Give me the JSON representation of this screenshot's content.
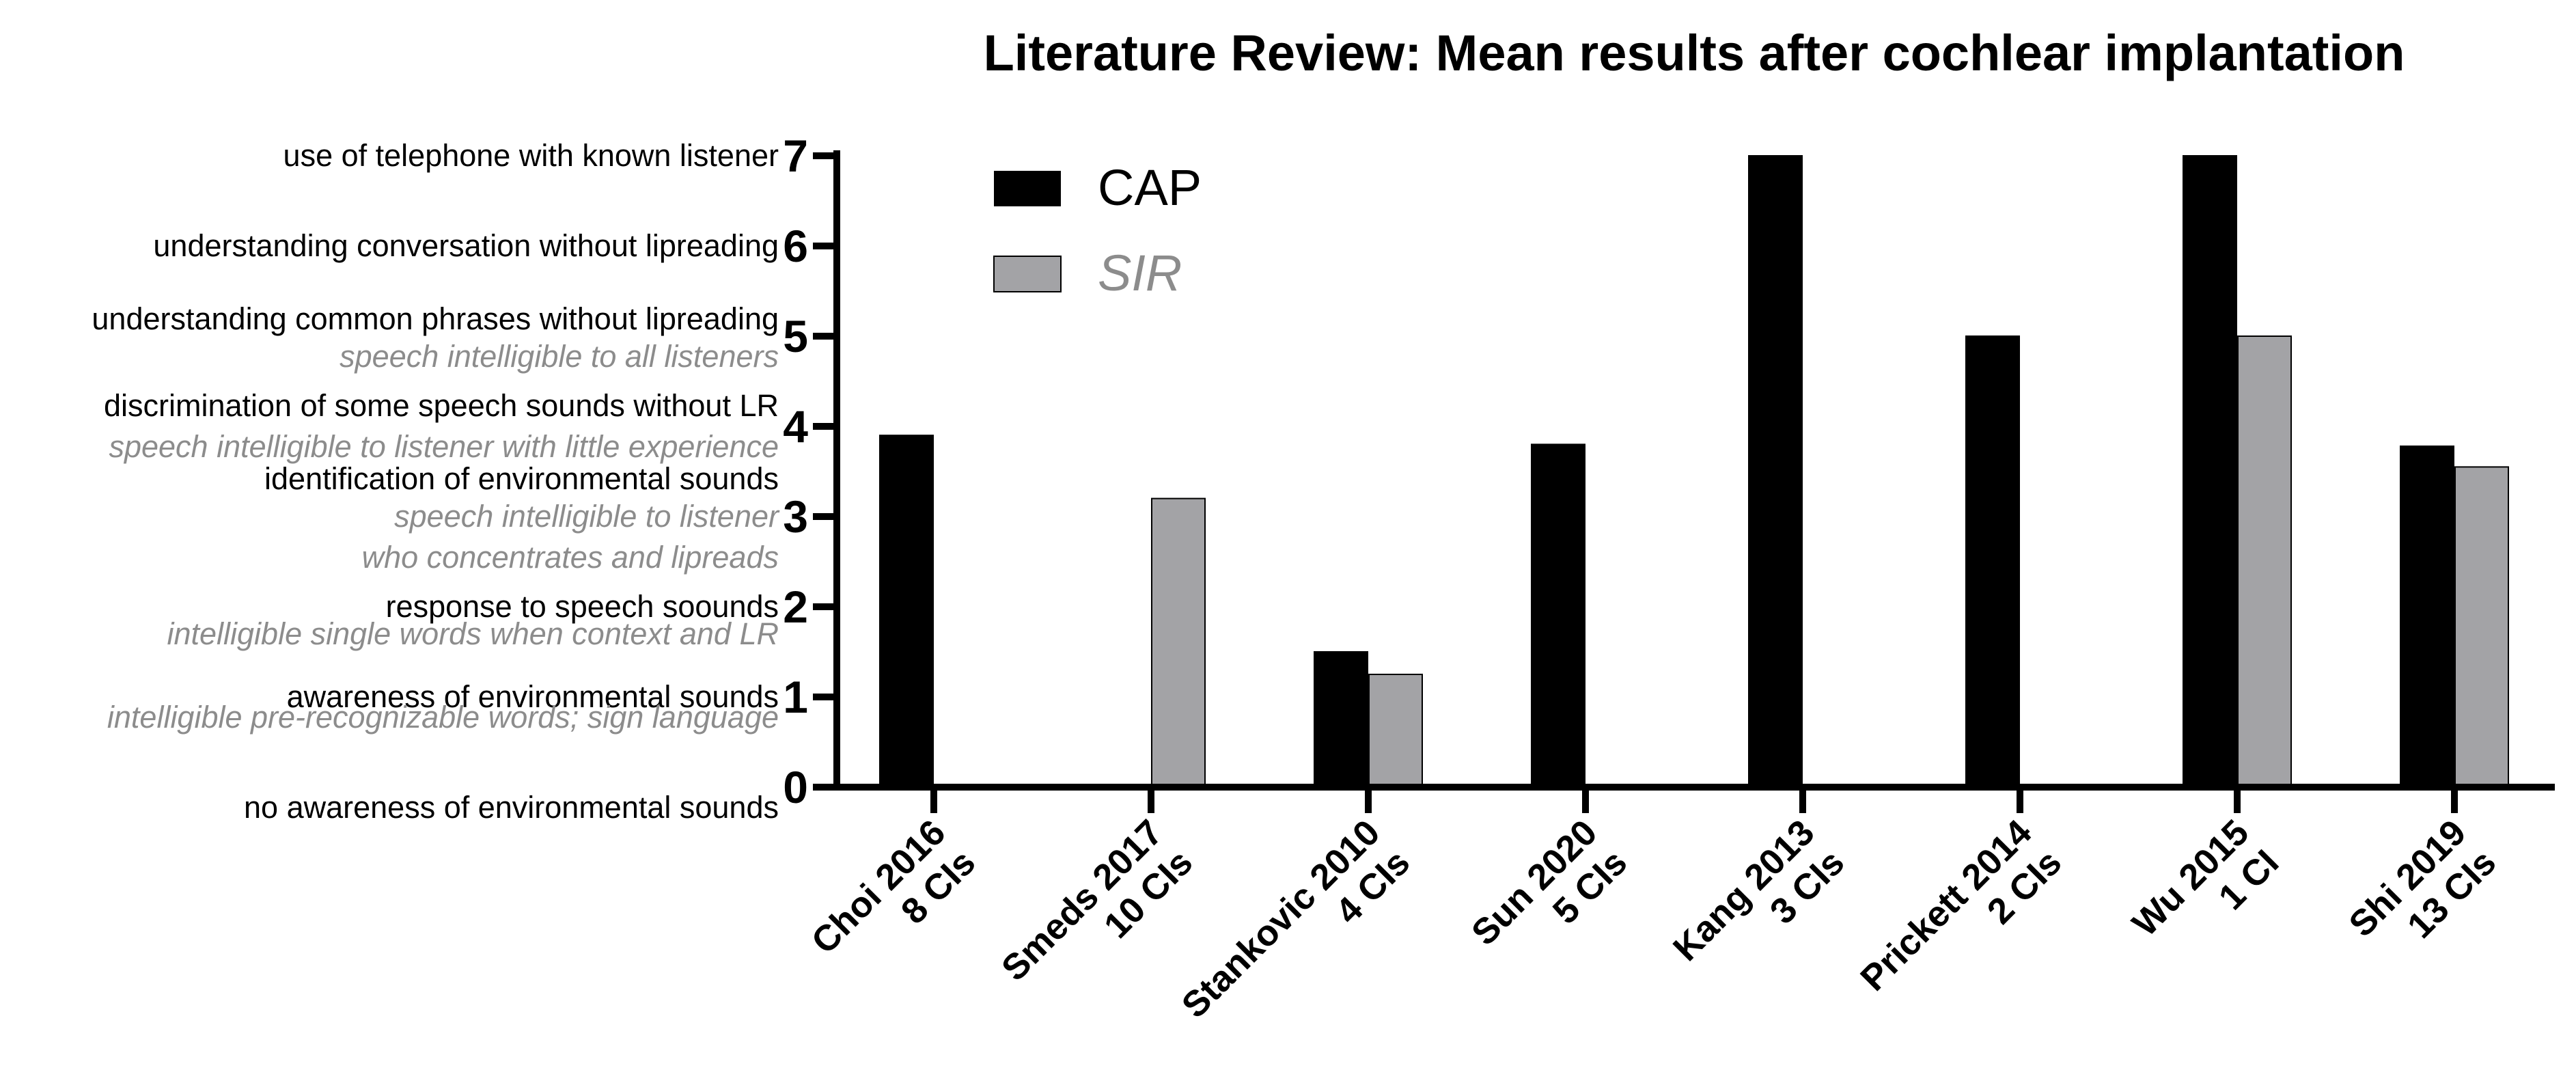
{
  "chart_data": {
    "type": "bar",
    "title": "Literature Review: Mean results after cochlear implantation",
    "xlabel": "",
    "ylabel": "",
    "ylim": [
      0,
      7
    ],
    "yticks": [
      0,
      1,
      2,
      3,
      4,
      5,
      6,
      7
    ],
    "grid": false,
    "legend_position": "top-left",
    "categories": [
      {
        "line1": "Choi 2016",
        "line2": "8 CIs"
      },
      {
        "line1": "Smeds 2017",
        "line2": "10 CIs"
      },
      {
        "line1": "Stankovic 2010",
        "line2": "4 CIs"
      },
      {
        "line1": "Sun 2020",
        "line2": "5 CIs"
      },
      {
        "line1": "Kang 2013",
        "line2": "3 CIs"
      },
      {
        "line1": "Prickett 2014",
        "line2": "2 CIs"
      },
      {
        "line1": "Wu 2015",
        "line2": "1 CI"
      },
      {
        "line1": "Shi 2019",
        "line2": "13 CIs"
      }
    ],
    "series": [
      {
        "name": "CAP",
        "color": "#000000",
        "values": [
          3.9,
          null,
          1.5,
          3.8,
          7,
          5,
          7,
          3.78
        ]
      },
      {
        "name": "SIR",
        "color": "#a3a3a6",
        "values": [
          null,
          3.2,
          1.25,
          null,
          null,
          null,
          5,
          3.55
        ]
      }
    ],
    "cap_level_labels": [
      {
        "level": 0,
        "text": "no awareness of environmental sounds"
      },
      {
        "level": 1,
        "text": "awareness of environmental sounds"
      },
      {
        "level": 2,
        "text": "response to speech soounds"
      },
      {
        "level": 3,
        "text": "identification of environmental sounds"
      },
      {
        "level": 4,
        "text": "discrimination of some speech sounds without LR"
      },
      {
        "level": 5,
        "text": "understanding common phrases without lipreading"
      },
      {
        "level": 6,
        "text": "understanding conversation without lipreading"
      },
      {
        "level": 7,
        "text": "use of telephone with known listener"
      }
    ],
    "sir_level_labels": [
      {
        "level": 1,
        "lines": [
          "intelligible pre-recognizable words; sign language"
        ]
      },
      {
        "level": 2,
        "lines": [
          "intelligible single words when context and LR"
        ]
      },
      {
        "level": 3,
        "lines": [
          "speech intelligible to listener",
          "who concentrates and lipreads"
        ]
      },
      {
        "level": 4,
        "lines": [
          "speech  intelligible to listener with little experience"
        ]
      },
      {
        "level": 5,
        "lines": [
          "speech  intelligible to all listeners"
        ]
      }
    ]
  }
}
